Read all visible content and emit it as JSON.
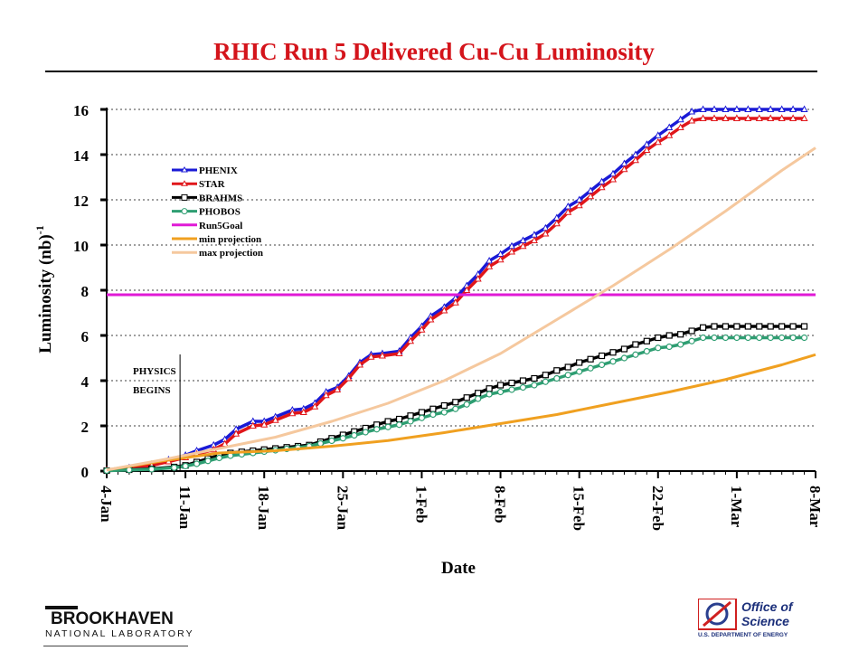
{
  "title": "RHIC Run 5 Delivered Cu-Cu Luminosity",
  "chart_data": {
    "type": "line",
    "title": "RHIC Run 5 Delivered Cu-Cu Luminosity",
    "xlabel": "Date",
    "ylabel": "Luminosity (nb)",
    "ylabel_sup": "-1",
    "ylim": [
      0,
      16
    ],
    "yticks": [
      0,
      2,
      4,
      6,
      8,
      10,
      12,
      14,
      16
    ],
    "xlim": [
      0,
      63
    ],
    "xticks": [
      {
        "day": 0,
        "label": "4-Jan"
      },
      {
        "day": 7,
        "label": "11-Jan"
      },
      {
        "day": 14,
        "label": "18-Jan"
      },
      {
        "day": 21,
        "label": "25-Jan"
      },
      {
        "day": 28,
        "label": "1-Feb"
      },
      {
        "day": 35,
        "label": "8-Feb"
      },
      {
        "day": 42,
        "label": "15-Feb"
      },
      {
        "day": 49,
        "label": "22-Feb"
      },
      {
        "day": 56,
        "label": "1-Mar"
      },
      {
        "day": 63,
        "label": "8-Mar"
      }
    ],
    "grid": "horizontal dotted",
    "legend_position": "top-left",
    "annotation": {
      "day": 7,
      "line1": "PHYSICS",
      "line2": "BEGINS"
    },
    "series": [
      {
        "name": "PHENIX",
        "color": "#1a1ad6",
        "marker": "triangle",
        "x": [
          0,
          2,
          4,
          5.5,
          7,
          8,
          9.5,
          10.5,
          11.5,
          13,
          14,
          15,
          16.5,
          17.5,
          18.5,
          19.5,
          20.5,
          21.5,
          22.5,
          23.5,
          24.5,
          26,
          27,
          28,
          28.8,
          30,
          31,
          32,
          33,
          34,
          35,
          36,
          37,
          38,
          39,
          40,
          41,
          42,
          43,
          44,
          45,
          46,
          47,
          48,
          49,
          50,
          51,
          52,
          53,
          54,
          55,
          56,
          57,
          58,
          59,
          60,
          61,
          62
        ],
        "values": [
          0.05,
          0.15,
          0.3,
          0.5,
          0.7,
          0.9,
          1.15,
          1.4,
          1.85,
          2.2,
          2.2,
          2.4,
          2.7,
          2.75,
          3.0,
          3.5,
          3.7,
          4.2,
          4.8,
          5.15,
          5.2,
          5.3,
          5.9,
          6.4,
          6.85,
          7.25,
          7.65,
          8.2,
          8.7,
          9.3,
          9.6,
          9.95,
          10.2,
          10.45,
          10.75,
          11.2,
          11.7,
          12.0,
          12.4,
          12.8,
          13.15,
          13.6,
          14.0,
          14.45,
          14.85,
          15.2,
          15.55,
          15.9,
          16.0,
          16.0,
          16.0,
          16.0,
          16.0,
          16.0,
          16.0,
          16.0,
          16.0,
          16.0
        ]
      },
      {
        "name": "STAR",
        "color": "#e0161a",
        "marker": "triangle",
        "x": [
          0,
          2,
          4,
          5.5,
          7,
          8,
          9.5,
          10.5,
          11.5,
          13,
          14,
          15,
          16.5,
          17.5,
          18.5,
          19.5,
          20.5,
          21.5,
          22.5,
          23.5,
          24.5,
          26,
          27,
          28,
          28.8,
          30,
          31,
          32,
          33,
          34,
          35,
          36,
          37,
          38,
          39,
          40,
          41,
          42,
          43,
          44,
          45,
          46,
          47,
          48,
          49,
          50,
          51,
          52,
          53,
          54,
          55,
          56,
          57,
          58,
          59,
          60,
          61,
          62
        ],
        "values": [
          0.05,
          0.12,
          0.25,
          0.42,
          0.6,
          0.75,
          0.95,
          1.2,
          1.65,
          2.0,
          2.05,
          2.25,
          2.55,
          2.6,
          2.85,
          3.35,
          3.6,
          4.1,
          4.7,
          5.05,
          5.1,
          5.2,
          5.75,
          6.25,
          6.7,
          7.1,
          7.45,
          8.0,
          8.5,
          9.05,
          9.35,
          9.7,
          9.95,
          10.2,
          10.5,
          10.95,
          11.45,
          11.75,
          12.15,
          12.55,
          12.9,
          13.35,
          13.75,
          14.2,
          14.55,
          14.85,
          15.2,
          15.5,
          15.6,
          15.6,
          15.6,
          15.6,
          15.6,
          15.6,
          15.6,
          15.6,
          15.6,
          15.6
        ]
      },
      {
        "name": "BRAHMS",
        "color": "#000000",
        "marker": "square",
        "x": [
          0,
          2,
          4,
          6,
          7,
          8,
          9,
          10,
          11,
          12,
          13,
          14,
          15,
          16,
          17,
          18,
          19,
          20,
          21,
          22,
          23,
          24,
          25,
          26,
          27,
          28,
          29,
          30,
          31,
          32,
          33,
          34,
          35,
          36,
          37,
          38,
          39,
          40,
          41,
          42,
          43,
          44,
          45,
          46,
          47,
          48,
          49,
          50,
          51,
          52,
          53,
          54,
          55,
          56,
          57,
          58,
          59,
          60,
          61,
          62
        ],
        "values": [
          0.02,
          0.06,
          0.1,
          0.18,
          0.25,
          0.4,
          0.55,
          0.7,
          0.8,
          0.85,
          0.9,
          0.95,
          1.0,
          1.05,
          1.1,
          1.15,
          1.3,
          1.45,
          1.6,
          1.75,
          1.9,
          2.05,
          2.2,
          2.3,
          2.45,
          2.6,
          2.75,
          2.9,
          3.05,
          3.25,
          3.45,
          3.65,
          3.8,
          3.9,
          4.0,
          4.1,
          4.25,
          4.45,
          4.6,
          4.8,
          4.95,
          5.1,
          5.25,
          5.4,
          5.6,
          5.75,
          5.9,
          6.0,
          6.05,
          6.2,
          6.35,
          6.4,
          6.4,
          6.4,
          6.4,
          6.4,
          6.4,
          6.4,
          6.4,
          6.4
        ]
      },
      {
        "name": "PHOBOS",
        "color": "#2e9e72",
        "marker": "circle",
        "x": [
          0,
          2,
          4,
          6,
          7,
          8,
          9,
          10,
          11,
          12,
          13,
          14,
          15,
          16,
          17,
          18,
          19,
          20,
          21,
          22,
          23,
          24,
          25,
          26,
          27,
          28,
          29,
          30,
          31,
          32,
          33,
          34,
          35,
          36,
          37,
          38,
          39,
          40,
          41,
          42,
          43,
          44,
          45,
          46,
          47,
          48,
          49,
          50,
          51,
          52,
          53,
          54,
          55,
          56,
          57,
          58,
          59,
          60,
          61,
          62
        ],
        "values": [
          0.02,
          0.05,
          0.08,
          0.15,
          0.22,
          0.32,
          0.45,
          0.58,
          0.68,
          0.74,
          0.8,
          0.86,
          0.92,
          0.98,
          1.04,
          1.1,
          1.22,
          1.34,
          1.45,
          1.58,
          1.72,
          1.85,
          1.95,
          2.05,
          2.2,
          2.35,
          2.5,
          2.6,
          2.75,
          2.95,
          3.2,
          3.4,
          3.5,
          3.6,
          3.7,
          3.8,
          3.95,
          4.1,
          4.25,
          4.4,
          4.55,
          4.7,
          4.85,
          5.0,
          5.15,
          5.3,
          5.45,
          5.5,
          5.6,
          5.75,
          5.9,
          5.9,
          5.9,
          5.9,
          5.9,
          5.9,
          5.9,
          5.9,
          5.9,
          5.9
        ]
      },
      {
        "name": "Run5Goal",
        "color": "#e01ad6",
        "marker": "none",
        "x": [
          0,
          63
        ],
        "values": [
          7.8,
          7.8
        ]
      },
      {
        "name": "min projection",
        "color": "#f0a020",
        "marker": "none",
        "x": [
          0,
          5,
          10,
          15,
          20,
          25,
          30,
          35,
          40,
          45,
          50,
          55,
          60,
          63
        ],
        "values": [
          0.05,
          0.45,
          0.8,
          0.9,
          1.1,
          1.35,
          1.7,
          2.1,
          2.5,
          3.0,
          3.5,
          4.05,
          4.7,
          5.15
        ]
      },
      {
        "name": "max projection",
        "color": "#f5c89e",
        "marker": "none",
        "x": [
          0,
          5,
          10,
          15,
          20,
          25,
          30,
          35,
          40,
          45,
          50,
          55,
          60,
          63
        ],
        "values": [
          0.05,
          0.5,
          1.0,
          1.5,
          2.2,
          3.0,
          4.0,
          5.2,
          6.7,
          8.2,
          9.8,
          11.5,
          13.3,
          14.3
        ]
      }
    ]
  },
  "logos": {
    "bnl_name": "BROOKHAVEN",
    "bnl_sub": "NATIONAL LABORATORY",
    "doe_name_1": "Office of",
    "doe_name_2": "Science",
    "doe_sub": "U.S. DEPARTMENT OF ENERGY"
  }
}
